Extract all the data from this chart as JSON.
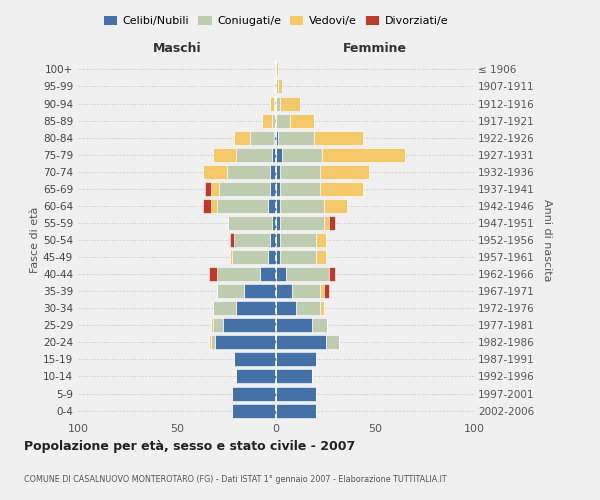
{
  "age_groups": [
    "0-4",
    "5-9",
    "10-14",
    "15-19",
    "20-24",
    "25-29",
    "30-34",
    "35-39",
    "40-44",
    "45-49",
    "50-54",
    "55-59",
    "60-64",
    "65-69",
    "70-74",
    "75-79",
    "80-84",
    "85-89",
    "90-94",
    "95-99",
    "100+"
  ],
  "birth_years": [
    "2002-2006",
    "1997-2001",
    "1992-1996",
    "1987-1991",
    "1982-1986",
    "1977-1981",
    "1972-1976",
    "1967-1971",
    "1962-1966",
    "1957-1961",
    "1952-1956",
    "1947-1951",
    "1942-1946",
    "1937-1941",
    "1932-1936",
    "1927-1931",
    "1922-1926",
    "1917-1921",
    "1912-1916",
    "1907-1911",
    "≤ 1906"
  ],
  "males_celibi": [
    22,
    22,
    20,
    21,
    31,
    27,
    20,
    16,
    8,
    4,
    3,
    2,
    4,
    3,
    3,
    2,
    1,
    0,
    0,
    0,
    0
  ],
  "males_coniugati": [
    0,
    0,
    0,
    0,
    2,
    5,
    12,
    14,
    22,
    18,
    18,
    22,
    26,
    26,
    22,
    18,
    12,
    2,
    1,
    0,
    0
  ],
  "males_vedovi": [
    0,
    0,
    0,
    0,
    1,
    1,
    0,
    0,
    0,
    1,
    0,
    0,
    3,
    4,
    12,
    12,
    8,
    5,
    2,
    1,
    0
  ],
  "males_divorziati": [
    0,
    0,
    0,
    0,
    0,
    0,
    0,
    0,
    4,
    0,
    2,
    0,
    4,
    3,
    0,
    0,
    0,
    0,
    0,
    0,
    0
  ],
  "females_nubili": [
    20,
    20,
    18,
    20,
    25,
    18,
    10,
    8,
    5,
    2,
    2,
    2,
    2,
    2,
    2,
    3,
    1,
    0,
    0,
    0,
    0
  ],
  "females_coniugate": [
    0,
    0,
    0,
    0,
    7,
    8,
    12,
    14,
    22,
    18,
    18,
    22,
    22,
    20,
    20,
    20,
    18,
    7,
    2,
    1,
    0
  ],
  "females_vedove": [
    0,
    0,
    0,
    0,
    0,
    0,
    2,
    2,
    0,
    5,
    5,
    3,
    12,
    22,
    25,
    42,
    25,
    12,
    10,
    2,
    1
  ],
  "females_divorziate": [
    0,
    0,
    0,
    0,
    0,
    0,
    0,
    3,
    3,
    0,
    0,
    3,
    0,
    0,
    0,
    0,
    0,
    0,
    0,
    0,
    0
  ],
  "color_celibi": "#4472A8",
  "color_coniugati": "#BECCB0",
  "color_vedovi": "#F5C96A",
  "color_divorziati": "#C0392B",
  "xlim": 100,
  "title": "Popolazione per età, sesso e stato civile - 2007",
  "subtitle": "COMUNE DI CASALNUOVO MONTEROTARO (FG) - Dati ISTAT 1° gennaio 2007 - Elaborazione TUTTITALIA.IT",
  "ylabel_left": "Fasce di età",
  "ylabel_right": "Anni di nascita",
  "header_left": "Maschi",
  "header_right": "Femmine",
  "legend_labels": [
    "Celibi/Nubili",
    "Coniugati/e",
    "Vedovi/e",
    "Divorziati/e"
  ],
  "bg_color": "#f0f0f0"
}
